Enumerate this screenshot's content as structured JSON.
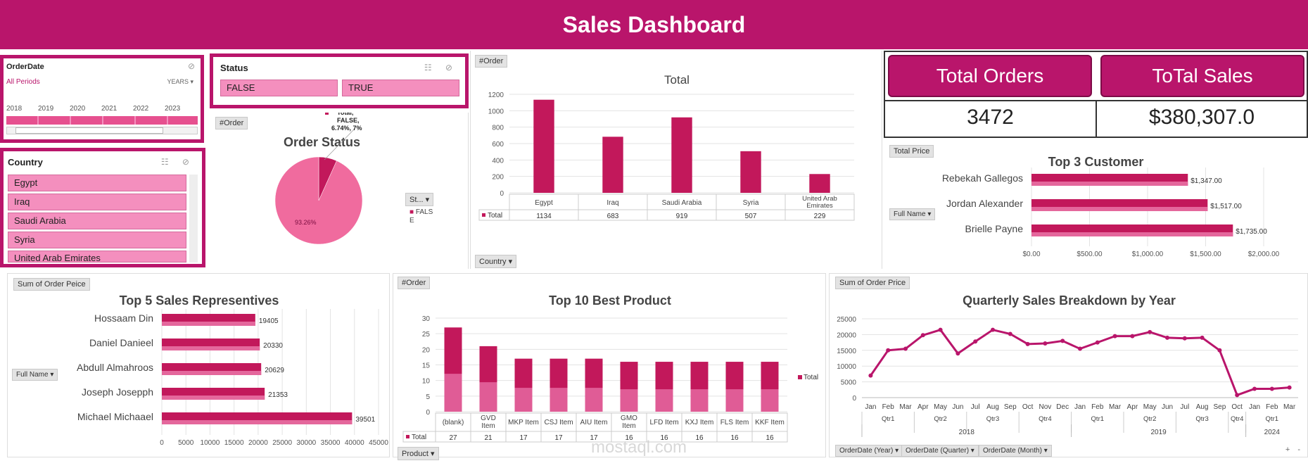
{
  "header": {
    "title": "Sales Dashboard"
  },
  "orderdate_slicer": {
    "title": "OrderDate",
    "period_label": "All Periods",
    "unit": "YEARS",
    "years": [
      "2018",
      "2019",
      "2020",
      "2021",
      "2022",
      "2023"
    ]
  },
  "status_slicer": {
    "title": "Status",
    "items": [
      "FALSE",
      "TRUE"
    ]
  },
  "country_slicer": {
    "title": "Country",
    "items": [
      "Egypt",
      "Iraq",
      "Saudi Arabia",
      "Syria",
      "United Arab Emirates"
    ]
  },
  "kpis": {
    "orders_label": "Total Orders",
    "orders_value": "3472",
    "sales_label": "ToTal Sales",
    "sales_value": "$380,307.0"
  },
  "tags": {
    "order": "#Order",
    "total_price": "Total Price",
    "full_name": "Full Name",
    "country": "Country",
    "sum_order_peice": "Sum of Order Peice",
    "sum_order_price": "Sum of Order Price",
    "product": "Product",
    "st": "St...",
    "orderdate_year": "OrderDate (Year)",
    "orderdate_quarter": "OrderDate (Quarter)",
    "orderdate_month": "OrderDate (Month)"
  },
  "watermark": {
    "text": "mostaql.com"
  },
  "colors": {
    "brand": "#b9156b",
    "bar": "#c2185b",
    "chip": "#f48fbe"
  },
  "chart_data": [
    {
      "id": "order_status",
      "type": "pie",
      "title": "Order  Status",
      "slices": [
        {
          "name": "FALSE",
          "value": 6.74,
          "label": "Total, FALSE, 6.74%, 7%"
        },
        {
          "name": "TRUE",
          "value": 93.26,
          "label": "93.26%"
        }
      ],
      "legend": [
        "FALS E"
      ],
      "callout_lines": [
        "Total,",
        "FALSE,",
        "6.74%, 7%"
      ]
    },
    {
      "id": "orders_by_country",
      "type": "bar",
      "title": "Total",
      "categories": [
        "Egypt",
        "Iraq",
        "Saudi Arabia",
        "Syria",
        "United Arab Emirates"
      ],
      "series": [
        {
          "name": "Total",
          "values": [
            1134,
            683,
            919,
            507,
            229
          ]
        }
      ],
      "ylim": [
        0,
        1200
      ],
      "yticks": [
        0,
        200,
        400,
        600,
        800,
        1000,
        1200
      ],
      "grid": true
    },
    {
      "id": "top3_customer",
      "type": "bar",
      "orientation": "horizontal",
      "title": "Top 3 Customer",
      "categories": [
        "Rebekah Gallegos",
        "Jordan Alexander",
        "Brielle Payne"
      ],
      "values": [
        1347,
        1517,
        1735
      ],
      "data_labels": [
        "$1,347.00",
        "$1,517.00",
        "$1,735.00"
      ],
      "xlim": [
        0,
        2000
      ],
      "xticks": [
        "$0.00",
        "$500.00",
        "$1,000.00",
        "$1,500.00",
        "$2,000.00"
      ]
    },
    {
      "id": "top5_reps",
      "type": "bar",
      "orientation": "horizontal",
      "title": "Top 5 Sales Representives",
      "categories": [
        "Hossaam Din",
        "Daniel Danieel",
        "Abdull Almahroos",
        "Joseph Josepph",
        "Michael Michaael"
      ],
      "values": [
        19405,
        20330,
        20629,
        21353,
        39501
      ],
      "xlim": [
        0,
        45000
      ],
      "xticks": [
        0,
        5000,
        10000,
        15000,
        20000,
        25000,
        30000,
        35000,
        40000,
        45000
      ]
    },
    {
      "id": "top10_products",
      "type": "bar",
      "title": "Top 10 Best Product",
      "categories": [
        "(blank)",
        "GVD Item",
        "MKP Item",
        "CSJ Item",
        "AIU Item",
        "GMO Item",
        "LFD Item",
        "KXJ Item",
        "FLS Item",
        "KKF Item"
      ],
      "series": [
        {
          "name": "Total",
          "values": [
            27,
            21,
            17,
            17,
            17,
            16,
            16,
            16,
            16,
            16
          ]
        }
      ],
      "ylim": [
        0,
        30
      ],
      "yticks": [
        0,
        5,
        10,
        15,
        20,
        25,
        30
      ]
    },
    {
      "id": "quarterly_sales",
      "type": "line",
      "title": "Quarterly Sales Breakdown by Year",
      "x": [
        "Jan",
        "Feb",
        "Mar",
        "Apr",
        "May",
        "Jun",
        "Jul",
        "Aug",
        "Sep",
        "Oct",
        "Nov",
        "Dec",
        "Jan",
        "Feb",
        "Mar",
        "Apr",
        "May",
        "Jun",
        "Jul",
        "Aug",
        "Sep",
        "Oct",
        "Jan",
        "Feb",
        "Mar"
      ],
      "values": [
        7000,
        15000,
        15500,
        19800,
        21500,
        14000,
        17800,
        21500,
        20200,
        17000,
        17200,
        18000,
        15500,
        17500,
        19500,
        19500,
        20800,
        19000,
        18800,
        19000,
        15000,
        800,
        2800,
        2800,
        3200
      ],
      "quarters": [
        {
          "label": "Qtr1",
          "span": 3
        },
        {
          "label": "Qtr2",
          "span": 3
        },
        {
          "label": "Qtr3",
          "span": 3
        },
        {
          "label": "Qtr4",
          "span": 3
        },
        {
          "label": "Qtr1",
          "span": 3
        },
        {
          "label": "Qtr2",
          "span": 3
        },
        {
          "label": "Qtr3",
          "span": 3
        },
        {
          "label": "Qtr4",
          "span": 1
        },
        {
          "label": "Qtr1",
          "span": 3
        }
      ],
      "years": [
        {
          "label": "2018",
          "span": 12
        },
        {
          "label": "2019",
          "span": 10
        },
        {
          "label": "2024",
          "span": 3
        }
      ],
      "ylim": [
        0,
        25000
      ],
      "yticks": [
        0,
        5000,
        10000,
        15000,
        20000,
        25000
      ]
    }
  ]
}
